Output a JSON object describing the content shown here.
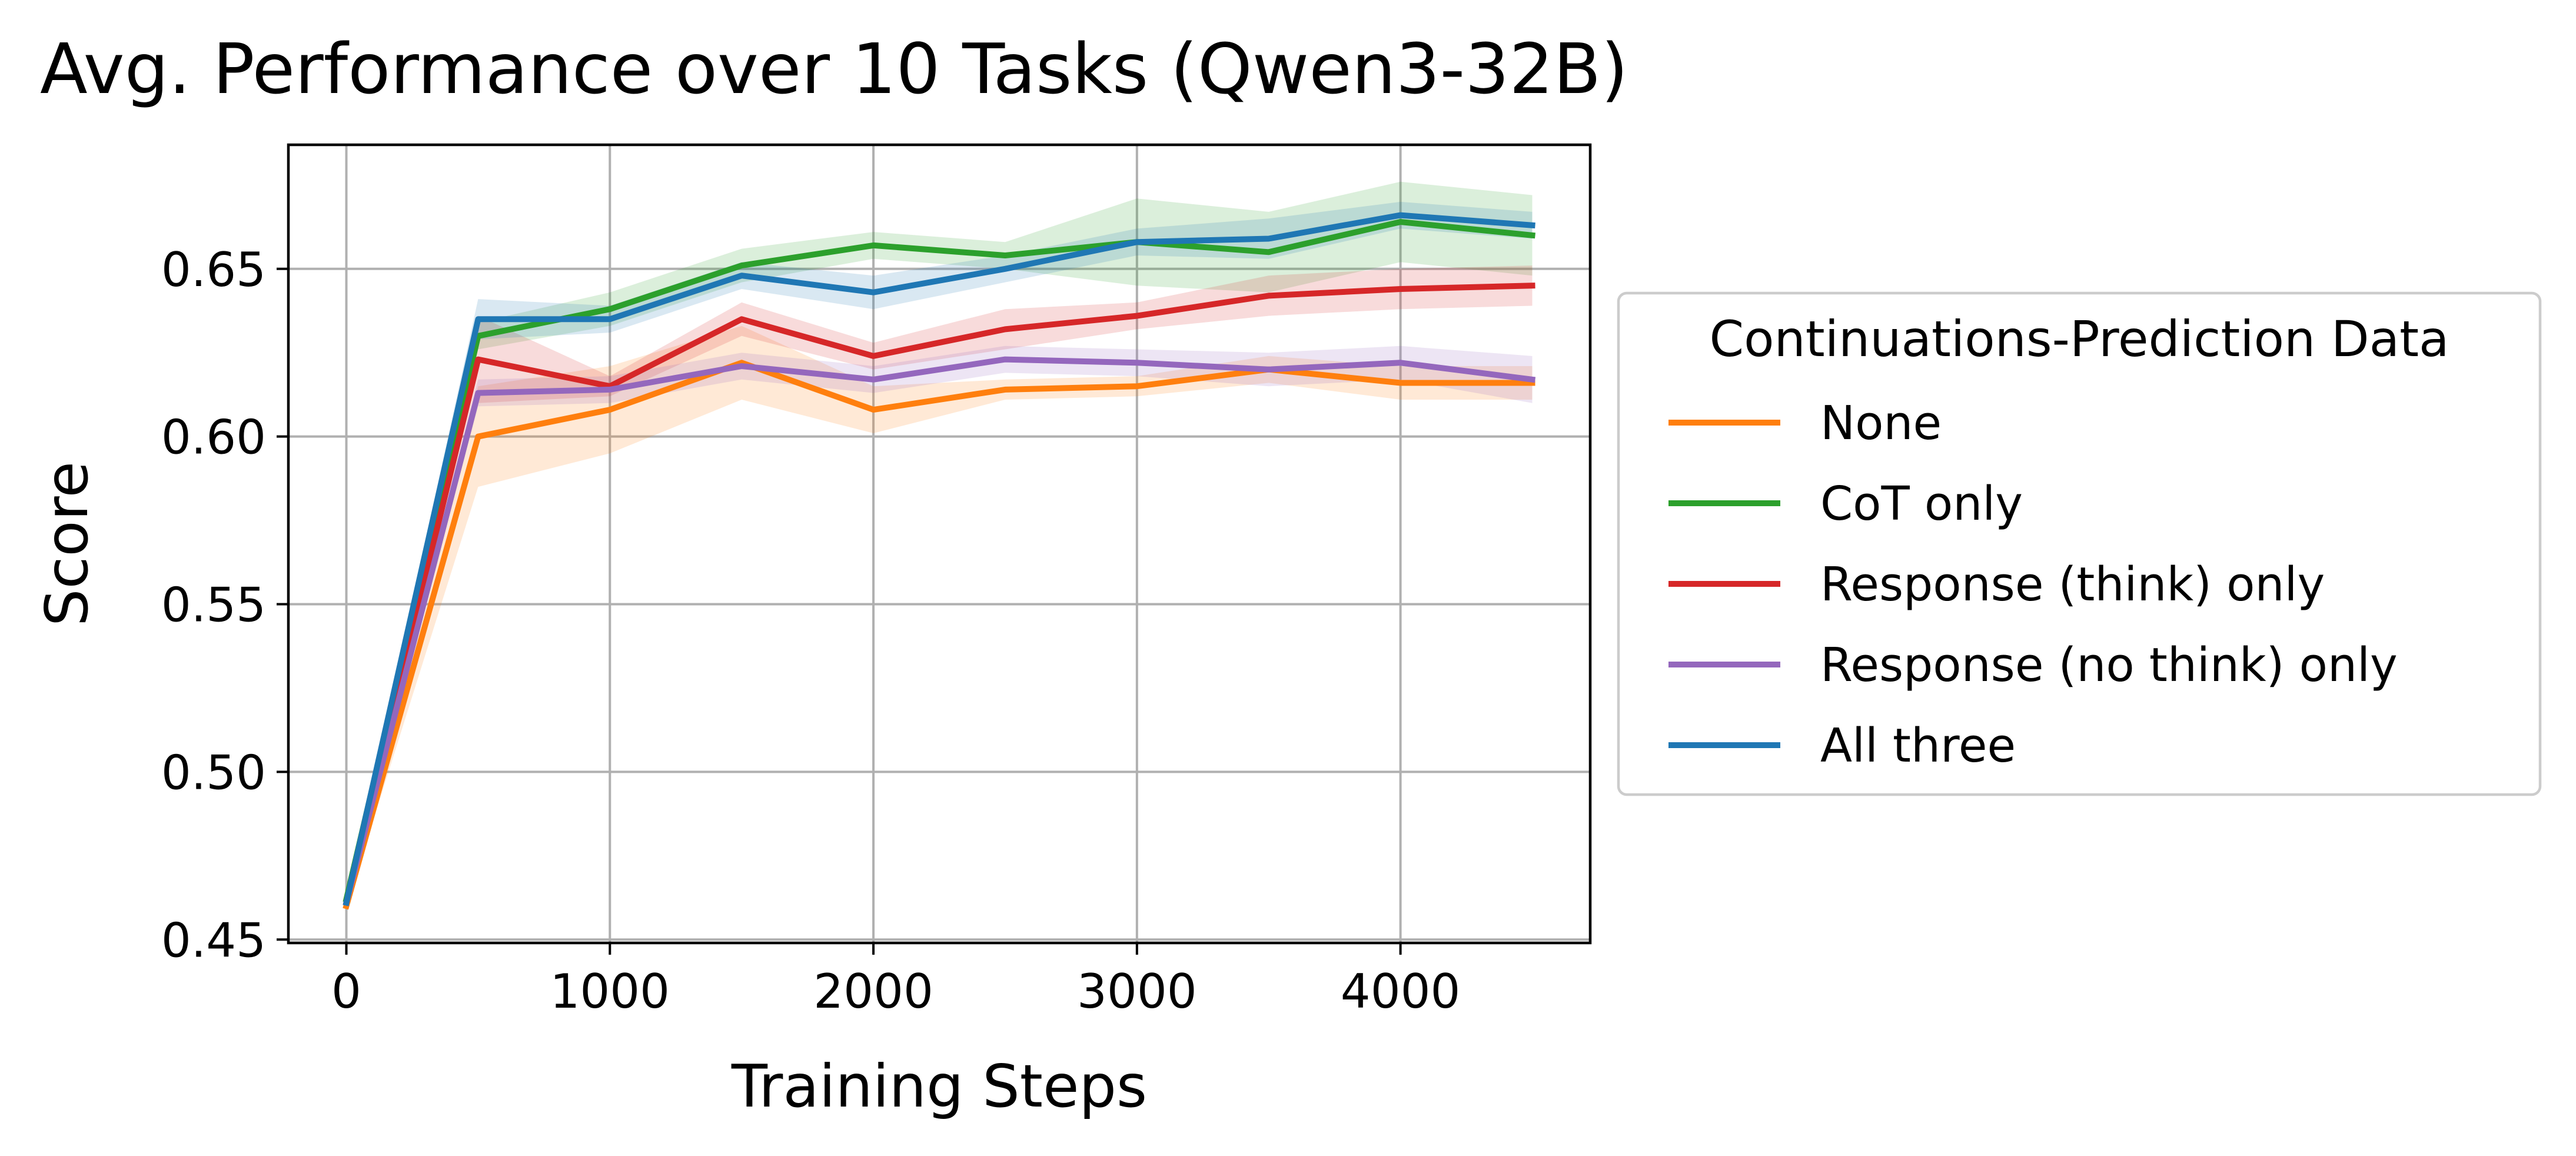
{
  "chart_data": {
    "type": "line",
    "title": "Avg. Performance over 10 Tasks (Qwen3-32B)",
    "xlabel": "Training Steps",
    "ylabel": "Score",
    "xlim": [
      -220,
      4720
    ],
    "ylim": [
      0.449,
      0.687
    ],
    "xticks": [
      0,
      1000,
      2000,
      3000,
      4000
    ],
    "yticks": [
      0.45,
      0.5,
      0.55,
      0.6,
      0.65
    ],
    "xtick_labels": [
      "0",
      "1000",
      "2000",
      "3000",
      "4000"
    ],
    "ytick_labels": [
      "0.45",
      "0.50",
      "0.55",
      "0.60",
      "0.65"
    ],
    "grid": true,
    "legend": {
      "title": "Continuations-Prediction Data",
      "placement": "outside-right"
    },
    "x": [
      0,
      500,
      1000,
      1500,
      2000,
      2500,
      3000,
      3500,
      4000,
      4500
    ],
    "series": [
      {
        "name": "None",
        "color": "#ff7f0e",
        "values": [
          0.46,
          0.6,
          0.608,
          0.622,
          0.608,
          0.614,
          0.615,
          0.62,
          0.616,
          0.616
        ],
        "lower": [
          0.46,
          0.585,
          0.595,
          0.611,
          0.601,
          0.611,
          0.612,
          0.616,
          0.611,
          0.611
        ],
        "upper": [
          0.46,
          0.615,
          0.621,
          0.633,
          0.615,
          0.617,
          0.618,
          0.624,
          0.621,
          0.621
        ]
      },
      {
        "name": "CoT only",
        "color": "#2ca02c",
        "values": [
          0.462,
          0.63,
          0.638,
          0.651,
          0.657,
          0.654,
          0.658,
          0.655,
          0.664,
          0.66
        ],
        "lower": [
          0.462,
          0.626,
          0.633,
          0.646,
          0.653,
          0.65,
          0.645,
          0.643,
          0.652,
          0.648
        ],
        "upper": [
          0.462,
          0.634,
          0.643,
          0.656,
          0.661,
          0.658,
          0.671,
          0.667,
          0.676,
          0.672
        ]
      },
      {
        "name": "Response (think) only",
        "color": "#d62728",
        "values": [
          0.461,
          0.623,
          0.615,
          0.635,
          0.624,
          0.632,
          0.636,
          0.642,
          0.644,
          0.645
        ],
        "lower": [
          0.461,
          0.61,
          0.612,
          0.63,
          0.62,
          0.626,
          0.632,
          0.636,
          0.638,
          0.639
        ],
        "upper": [
          0.461,
          0.636,
          0.618,
          0.64,
          0.628,
          0.638,
          0.64,
          0.648,
          0.65,
          0.651
        ]
      },
      {
        "name": "Response (no think) only",
        "color": "#9467bd",
        "values": [
          0.461,
          0.613,
          0.614,
          0.621,
          0.617,
          0.623,
          0.622,
          0.62,
          0.622,
          0.617
        ],
        "lower": [
          0.461,
          0.609,
          0.61,
          0.617,
          0.613,
          0.619,
          0.618,
          0.615,
          0.617,
          0.61
        ],
        "upper": [
          0.461,
          0.617,
          0.618,
          0.625,
          0.621,
          0.627,
          0.626,
          0.625,
          0.627,
          0.624
        ]
      },
      {
        "name": "All three",
        "color": "#1f77b4",
        "values": [
          0.461,
          0.635,
          0.635,
          0.648,
          0.643,
          0.65,
          0.658,
          0.659,
          0.666,
          0.663
        ],
        "lower": [
          0.461,
          0.629,
          0.631,
          0.644,
          0.638,
          0.646,
          0.654,
          0.653,
          0.662,
          0.659
        ],
        "upper": [
          0.461,
          0.641,
          0.639,
          0.652,
          0.648,
          0.654,
          0.662,
          0.665,
          0.67,
          0.667
        ]
      }
    ]
  }
}
